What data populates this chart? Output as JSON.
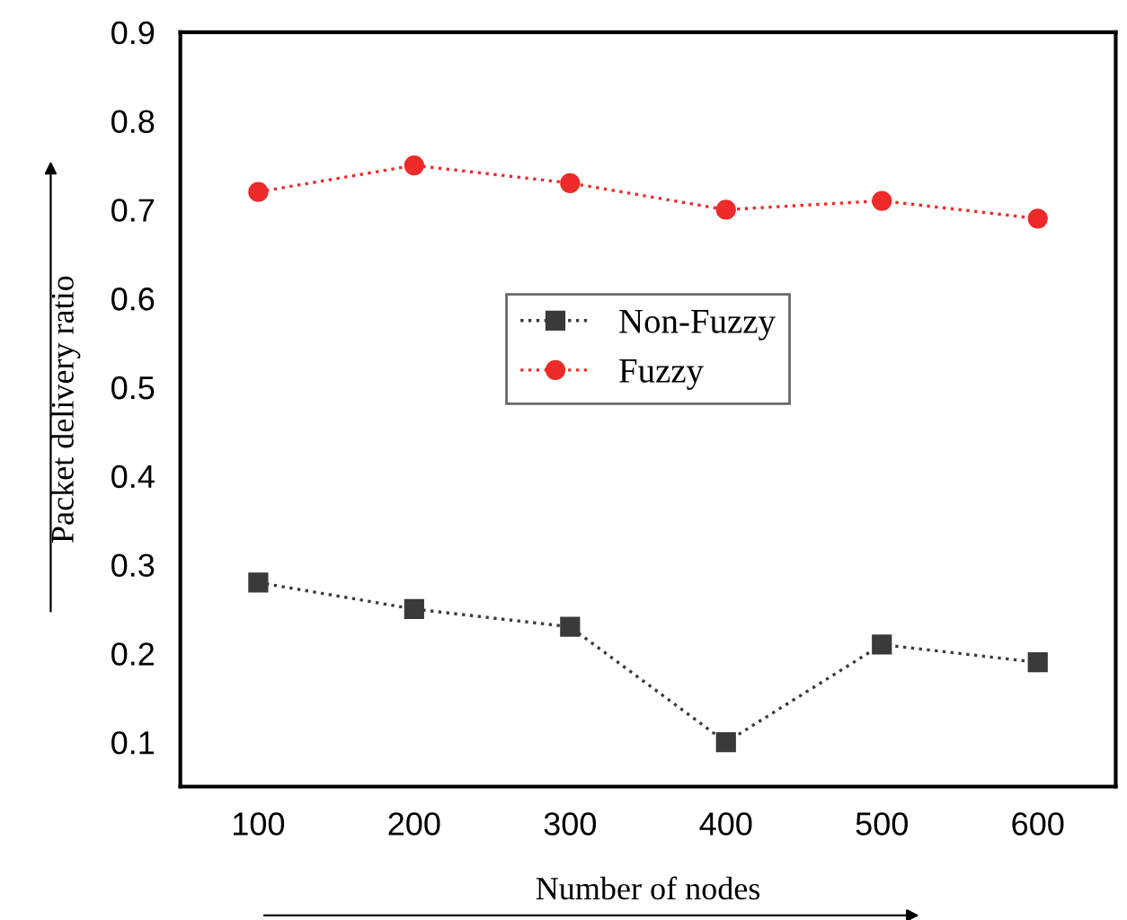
{
  "chart_data": {
    "type": "line",
    "xlabel": "Number of nodes",
    "ylabel": "Packet delivery ratio",
    "x": [
      100,
      200,
      300,
      400,
      500,
      600
    ],
    "series": [
      {
        "name": "Non-Fuzzy",
        "color": "#3a3a3a",
        "marker": "square",
        "values": [
          0.28,
          0.25,
          0.23,
          0.1,
          0.21,
          0.19
        ]
      },
      {
        "name": "Fuzzy",
        "color": "#ee2a2a",
        "marker": "circle",
        "values": [
          0.72,
          0.75,
          0.73,
          0.7,
          0.71,
          0.69
        ]
      }
    ],
    "xlim": [
      50,
      650
    ],
    "xticks": [
      100,
      200,
      300,
      400,
      500,
      600
    ],
    "ylim": [
      0.05,
      0.9
    ],
    "yticks": [
      0.1,
      0.2,
      0.3,
      0.4,
      0.5,
      0.6,
      0.7,
      0.8,
      0.9
    ],
    "line_style": "dotted",
    "grid": false,
    "legend": "center"
  }
}
